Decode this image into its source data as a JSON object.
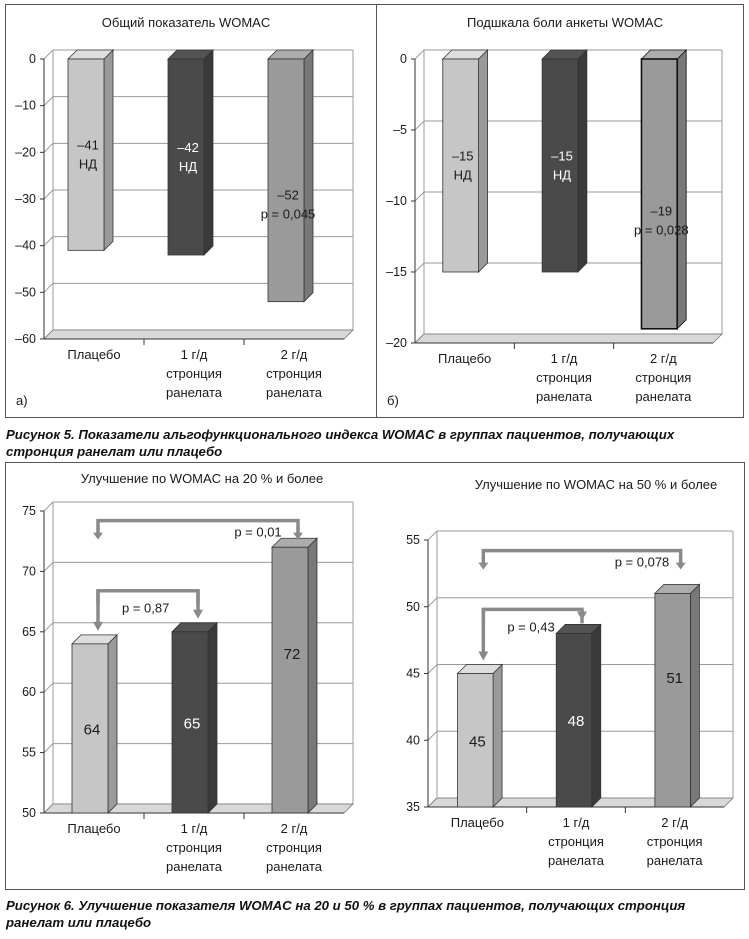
{
  "figure5": {
    "caption": "Рисунок 5. Показатели альгофункционального индекса WOMAC в группах пациентов, получающих стронция ранелат или плацебо"
  },
  "figure6": {
    "caption": "Рисунок 6. Улучшение показателя WOMAC на 20 и 50 % в группах пациентов, получающих стронция ранелат или плацебо"
  },
  "colors": {
    "light": "#c6c6c6",
    "dark": "#4a4a4a",
    "medium": "#9a9a9a",
    "bracket": "#8a8a8a"
  },
  "chart_data": [
    {
      "type": "bar",
      "panel_label": "а)",
      "title": "Общий показатель WOMAC",
      "categories": [
        [
          "Плацебо"
        ],
        [
          "1 г/д",
          "стронция",
          "ранелата"
        ],
        [
          "2 г/д",
          "стронция",
          "ранелата"
        ]
      ],
      "values": [
        -41,
        -42,
        -52
      ],
      "bar_labels": [
        [
          "–41",
          "НД"
        ],
        [
          "–42",
          "НД"
        ],
        [
          "–52",
          "p = 0,045"
        ]
      ],
      "ylim": [
        -60,
        0
      ],
      "yticks": [
        0,
        -10,
        -20,
        -30,
        -40,
        -50,
        -60
      ],
      "ytick_labels": [
        "0",
        "–10",
        "–20",
        "–30",
        "–40",
        "–50",
        "–60"
      ],
      "grid": true,
      "xlabel": "",
      "ylabel": ""
    },
    {
      "type": "bar",
      "panel_label": "б)",
      "title": "Подшкала боли анкеты WOMAC",
      "categories": [
        [
          "Плацебо"
        ],
        [
          "1 г/д",
          "стронция",
          "ранелата"
        ],
        [
          "2 г/д",
          "стронция",
          "ранелата"
        ]
      ],
      "values": [
        -15,
        -15,
        -19
      ],
      "bar_labels": [
        [
          "–15",
          "НД"
        ],
        [
          "–15",
          "НД"
        ],
        [
          "–19",
          "p = 0,028"
        ]
      ],
      "ylim": [
        -20,
        0
      ],
      "yticks": [
        0,
        -5,
        -10,
        -15,
        -20
      ],
      "ytick_labels": [
        "0",
        "–5",
        "–10",
        "–15",
        "–20"
      ],
      "grid": true,
      "xlabel": "",
      "ylabel": ""
    },
    {
      "type": "bar",
      "title": "Улучшение по WOMAC на 20 % и более",
      "categories": [
        [
          "Плацебо"
        ],
        [
          "1 г/д",
          "стронция",
          "ранелата"
        ],
        [
          "2 г/д",
          "стронция",
          "ранелата"
        ]
      ],
      "values": [
        64,
        65,
        72
      ],
      "bar_labels": [
        [
          "64"
        ],
        [
          "65"
        ],
        [
          "72"
        ]
      ],
      "ylim": [
        50,
        75
      ],
      "yticks": [
        75,
        70,
        65,
        60,
        55,
        50
      ],
      "ytick_labels": [
        "75",
        "70",
        "65",
        "60",
        "55",
        "50"
      ],
      "grid": true,
      "brackets": [
        {
          "from": 0,
          "to": 2,
          "label": "p = 0,01",
          "level": 74.2
        },
        {
          "from": 0,
          "to": 1,
          "label": "p = 0,87",
          "level": 68.4
        }
      ],
      "xlabel": "",
      "ylabel": ""
    },
    {
      "type": "bar",
      "title": "Улучшение по WOMAC на 50 % и более",
      "categories": [
        [
          "Плацебо"
        ],
        [
          "1 г/д",
          "стронция",
          "ранелата"
        ],
        [
          "2 г/д",
          "стронция",
          "ранелата"
        ]
      ],
      "values": [
        45,
        48,
        51
      ],
      "bar_labels": [
        [
          "45"
        ],
        [
          "48"
        ],
        [
          "51"
        ]
      ],
      "ylim": [
        35,
        55
      ],
      "yticks": [
        55,
        50,
        45,
        40,
        35
      ],
      "ytick_labels": [
        "55",
        "50",
        "45",
        "40",
        "35"
      ],
      "grid": true,
      "brackets": [
        {
          "from": 0,
          "to": 2,
          "label": "p = 0,078",
          "level": 54.2
        },
        {
          "from": 0,
          "to": 1,
          "label": "p = 0,43",
          "level": 49.8
        }
      ],
      "xlabel": "",
      "ylabel": ""
    }
  ]
}
